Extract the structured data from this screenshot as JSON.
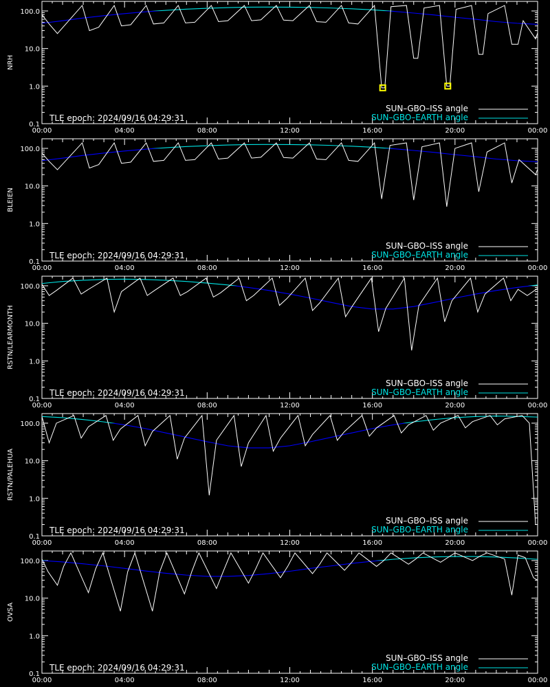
{
  "colors": {
    "background": "#000000",
    "axis": "#ffffff",
    "iss_series": "#ffffff",
    "earth_series": "#00e5e5",
    "earth_series_low": "#0000ff",
    "marker": "#ffff00"
  },
  "legend": {
    "iss_label": "SUN–GBO–ISS angle",
    "earth_label": "SUN–GBO–EARTH angle",
    "placement": "bottom-right"
  },
  "epoch_text": "TLE epoch: 2024/09/16 04:29:31",
  "chart_data": [
    {
      "type": "line",
      "ylabel": "NRH",
      "yscale": "log",
      "ylim": [
        0.1,
        180
      ],
      "xlim": [
        0,
        24
      ],
      "xticks": [
        "00:00",
        "04:00",
        "08:00",
        "12:00",
        "16:00",
        "20:00",
        "00:00"
      ],
      "yticks": [
        "100.0",
        "10.0",
        "1.0",
        "0.1"
      ],
      "earth": {
        "x": [
          0,
          1,
          2,
          3,
          4,
          5,
          6,
          7,
          8,
          9,
          10,
          11,
          12,
          13,
          14,
          15,
          16,
          17,
          18,
          19,
          20,
          21,
          22,
          23,
          24
        ],
        "y": [
          47,
          55,
          65,
          75,
          85,
          95,
          104,
          112,
          118,
          123,
          126,
          127,
          126,
          124,
          120,
          114,
          107,
          98,
          88,
          78,
          68,
          60,
          52,
          47,
          44
        ]
      },
      "iss": {
        "x": [
          0,
          0.35,
          0.75,
          1.95,
          2.3,
          2.75,
          3.5,
          3.85,
          4.3,
          5.05,
          5.4,
          5.9,
          6.6,
          6.95,
          7.4,
          8.2,
          8.55,
          9,
          9.8,
          10.15,
          10.6,
          11.35,
          11.7,
          12.15,
          12.95,
          13.3,
          13.75,
          14.5,
          14.85,
          15.3,
          16.1,
          16.45,
          16.6,
          16.9,
          17.65,
          18,
          18.2,
          18.5,
          19.25,
          19.6,
          19.75,
          20.05,
          20.8,
          21.15,
          21.35,
          21.6,
          22.4,
          22.75,
          23.05,
          23.3,
          23.9,
          24
        ],
        "y": [
          80,
          45,
          25,
          140,
          30,
          37,
          140,
          40,
          43,
          140,
          45,
          48,
          140,
          48,
          50,
          140,
          52,
          55,
          140,
          55,
          58,
          140,
          57,
          55,
          140,
          52,
          50,
          140,
          48,
          45,
          140,
          0.9,
          0.9,
          130,
          140,
          5.5,
          5.5,
          120,
          140,
          1,
          1,
          110,
          140,
          7,
          7,
          85,
          140,
          13,
          13,
          55,
          18,
          26
        ]
      },
      "markers": [
        [
          16.5,
          0.9
        ],
        [
          19.65,
          1.0
        ]
      ]
    },
    {
      "type": "line",
      "ylabel": "BLEIEN",
      "yscale": "log",
      "ylim": [
        0.1,
        180
      ],
      "xlim": [
        0,
        24
      ],
      "xticks": [
        "00:00",
        "04:00",
        "08:00",
        "12:00",
        "16:00",
        "20:00",
        "00:00"
      ],
      "yticks": [
        "100.0",
        "10.0",
        "1.0",
        "0.1"
      ],
      "earth": {
        "x": [
          0,
          1,
          2,
          3,
          4,
          5,
          6,
          7,
          8,
          9,
          10,
          11,
          12,
          13,
          14,
          15,
          16,
          17,
          18,
          19,
          20,
          21,
          22,
          23,
          24
        ],
        "y": [
          47,
          55,
          65,
          75,
          85,
          95,
          104,
          112,
          118,
          123,
          126,
          127,
          126,
          124,
          120,
          114,
          107,
          98,
          88,
          78,
          68,
          60,
          52,
          47,
          44
        ]
      },
      "iss": {
        "x": [
          0,
          0.35,
          0.75,
          1.95,
          2.3,
          2.75,
          3.5,
          3.85,
          4.3,
          5.05,
          5.4,
          5.9,
          6.6,
          6.95,
          7.4,
          8.2,
          8.55,
          9,
          9.8,
          10.15,
          10.6,
          11.35,
          11.7,
          12.15,
          12.95,
          13.3,
          13.75,
          14.5,
          14.85,
          15.3,
          16.1,
          16.45,
          16.85,
          17.65,
          18,
          18.4,
          19.25,
          19.6,
          20,
          20.8,
          21.15,
          21.55,
          22.4,
          22.75,
          23.1,
          23.9,
          24
        ],
        "y": [
          75,
          45,
          27,
          140,
          30,
          37,
          140,
          40,
          43,
          140,
          45,
          48,
          140,
          48,
          50,
          140,
          52,
          55,
          140,
          55,
          58,
          140,
          57,
          55,
          140,
          52,
          50,
          140,
          48,
          45,
          140,
          4.5,
          120,
          140,
          4.2,
          110,
          140,
          2.8,
          100,
          140,
          7,
          80,
          140,
          12,
          50,
          20,
          28
        ]
      },
      "markers": []
    },
    {
      "type": "line",
      "ylabel": "RSTN/LEARMONTH",
      "yscale": "log",
      "ylim": [
        0.1,
        180
      ],
      "xlim": [
        0,
        24
      ],
      "xticks": [
        "00:00",
        "04:00",
        "08:00",
        "12:00",
        "16:00",
        "20:00",
        "00:00"
      ],
      "yticks": [
        "100.0",
        "10.0",
        "1.0",
        "0.1"
      ],
      "earth": {
        "x": [
          0,
          1,
          2,
          3,
          4,
          5,
          6,
          7,
          8,
          9,
          10,
          11,
          12,
          13,
          14,
          15,
          16,
          17,
          18,
          19,
          20,
          21,
          22,
          23,
          24
        ],
        "y": [
          115,
          130,
          140,
          148,
          150,
          147,
          140,
          130,
          118,
          105,
          90,
          75,
          60,
          47,
          36,
          28,
          24,
          24,
          28,
          36,
          47,
          60,
          75,
          90,
          105
        ]
      },
      "iss": {
        "x": [
          0,
          0.35,
          0.7,
          1.5,
          1.9,
          2.25,
          3.15,
          3.5,
          3.85,
          4.75,
          5.1,
          5.45,
          6.35,
          6.7,
          7.05,
          7.95,
          8.3,
          8.65,
          9.55,
          9.9,
          10.25,
          11.15,
          11.5,
          11.85,
          12.75,
          13.1,
          13.45,
          14.35,
          14.7,
          15.05,
          15.95,
          16.3,
          16.65,
          17.55,
          17.9,
          18.25,
          19.15,
          19.5,
          19.85,
          20.75,
          21.1,
          21.45,
          22.35,
          22.7,
          23.05,
          23.5,
          24
        ],
        "y": [
          110,
          55,
          75,
          160,
          60,
          80,
          160,
          20,
          70,
          160,
          55,
          75,
          160,
          55,
          70,
          160,
          50,
          65,
          160,
          40,
          55,
          160,
          30,
          45,
          160,
          22,
          35,
          160,
          15,
          30,
          160,
          6,
          25,
          160,
          1.9,
          30,
          160,
          11,
          40,
          160,
          20,
          60,
          160,
          40,
          80,
          55,
          85
        ]
      },
      "markers": []
    },
    {
      "type": "line",
      "ylabel": "RSTN/PALEHUA",
      "yscale": "log",
      "ylim": [
        0.1,
        180
      ],
      "xlim": [
        0,
        24
      ],
      "xticks": [
        "00:00",
        "04:00",
        "08:00",
        "12:00",
        "16:00",
        "20:00",
        "00:00"
      ],
      "yticks": [
        "100.0",
        "10.0",
        "1.0",
        "0.1"
      ],
      "earth": {
        "x": [
          0,
          1,
          2,
          3,
          4,
          5,
          6,
          7,
          8,
          9,
          10,
          11,
          12,
          13,
          14,
          15,
          16,
          17,
          18,
          19,
          20,
          21,
          22,
          23,
          24
        ],
        "y": [
          150,
          140,
          125,
          108,
          90,
          72,
          55,
          42,
          32,
          25,
          22,
          22,
          25,
          32,
          42,
          55,
          72,
          90,
          108,
          125,
          140,
          150,
          155,
          152,
          145
        ]
      },
      "iss": {
        "x": [
          0,
          0.35,
          0.7,
          1.55,
          1.9,
          2.25,
          3.1,
          3.45,
          3.8,
          4.65,
          5,
          5.35,
          6.2,
          6.55,
          6.9,
          7.75,
          8.1,
          8.45,
          9.3,
          9.65,
          10,
          10.85,
          11.2,
          11.55,
          12.4,
          12.75,
          13.1,
          13.95,
          14.3,
          14.65,
          15.5,
          15.85,
          16.2,
          17.05,
          17.4,
          17.75,
          18.6,
          18.95,
          19.3,
          20.15,
          20.5,
          20.85,
          21.7,
          22.05,
          22.4,
          23.25,
          23.6,
          23.9,
          24
        ],
        "y": [
          150,
          30,
          100,
          160,
          40,
          80,
          160,
          35,
          70,
          160,
          25,
          60,
          160,
          11,
          40,
          160,
          1.2,
          35,
          160,
          7,
          30,
          160,
          18,
          40,
          160,
          25,
          50,
          160,
          35,
          60,
          160,
          45,
          75,
          160,
          55,
          90,
          160,
          65,
          100,
          160,
          75,
          110,
          160,
          90,
          130,
          160,
          100,
          0.2,
          0.2
        ]
      },
      "markers": []
    },
    {
      "type": "line",
      "ylabel": "OVSA",
      "yscale": "log",
      "ylim": [
        0.1,
        180
      ],
      "xlim": [
        0,
        24
      ],
      "xticks": [
        "00:00",
        "04:00",
        "08:00",
        "12:00",
        "16:00",
        "20:00",
        "00:00"
      ],
      "yticks": [
        "100.0",
        "10.0",
        "1.0",
        "0.1"
      ],
      "earth": {
        "x": [
          0,
          1,
          2,
          3,
          4,
          5,
          6,
          7,
          8,
          9,
          10,
          11,
          12,
          13,
          14,
          15,
          16,
          17,
          18,
          19,
          20,
          21,
          22,
          23,
          24
        ],
        "y": [
          100,
          92,
          82,
          72,
          62,
          53,
          46,
          41,
          38,
          38,
          40,
          45,
          52,
          62,
          72,
          84,
          96,
          108,
          118,
          125,
          128,
          128,
          124,
          117,
          108
        ]
      },
      "iss": {
        "x": [
          0,
          0.3,
          0.75,
          1.05,
          1.4,
          2.25,
          2.6,
          2.95,
          3.8,
          4.15,
          4.5,
          5.35,
          5.7,
          6.05,
          6.9,
          7.25,
          7.6,
          8.45,
          8.8,
          9.15,
          10,
          10.35,
          10.7,
          11.55,
          11.9,
          12.25,
          13.1,
          13.45,
          13.8,
          14.65,
          15,
          15.35,
          16.2,
          16.55,
          16.9,
          17.75,
          18.1,
          18.45,
          19.3,
          19.65,
          20,
          20.85,
          21.2,
          21.55,
          22.4,
          22.75,
          23.05,
          23.4,
          23.8,
          24
        ],
        "y": [
          110,
          50,
          22,
          70,
          160,
          14,
          60,
          160,
          4.5,
          50,
          160,
          4.5,
          50,
          160,
          13,
          50,
          160,
          18,
          55,
          160,
          25,
          60,
          160,
          35,
          70,
          160,
          45,
          80,
          160,
          55,
          90,
          160,
          70,
          100,
          160,
          80,
          110,
          160,
          90,
          120,
          160,
          100,
          130,
          160,
          110,
          12,
          140,
          120,
          35,
          30
        ]
      },
      "markers": []
    }
  ]
}
